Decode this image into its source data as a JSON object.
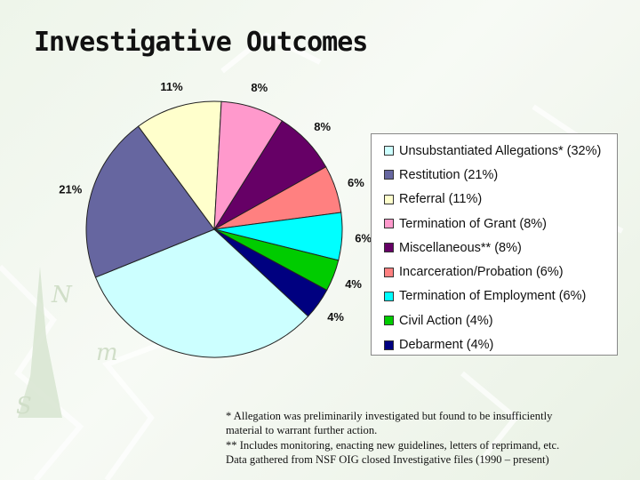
{
  "slide": {
    "title": "Investigative Outcomes"
  },
  "chart_data": {
    "type": "pie",
    "title": "",
    "categories": [
      "Unsubstantiated Allegations* (32%)",
      "Restitution (21%)",
      "Referral (11%)",
      "Termination of Grant (8%)",
      "Miscellaneous** (8%)",
      "Incarceration/Probation (6%)",
      "Termination of Employment (6%)",
      "Civil Action (4%)",
      "Debarment (4%)"
    ],
    "values": [
      32,
      21,
      11,
      8,
      8,
      6,
      6,
      4,
      4
    ],
    "data_labels": [
      "",
      "21%",
      "11%",
      "8%",
      "8%",
      "6%",
      "6%",
      "4%",
      "4%"
    ],
    "colors": [
      "#ccffff",
      "#6666a0",
      "#ffffcc",
      "#ff99cc",
      "#660066",
      "#ff8080",
      "#00ffff",
      "#00cc00",
      "#000080"
    ],
    "legend_position": "right"
  },
  "footnotes": [
    "* Allegation was preliminarily investigated but found to be insufficiently",
    "material to warrant further action.",
    "** Includes monitoring, enacting new guidelines, letters of reprimand, etc.",
    "Data gathered from NSF OIG closed Investigative files (1990 – present)"
  ]
}
